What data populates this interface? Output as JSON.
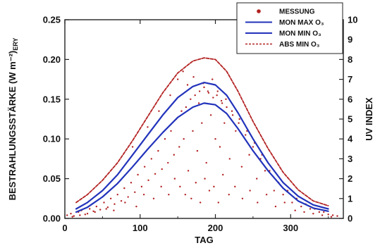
{
  "chart_data": {
    "type": "line",
    "xlabel": "TAG",
    "ylabel": "BESTRAHLUNGSSTÄRKE (W m⁻²)",
    "ylabel_sub": "ERY",
    "y2label": "UV INDEX",
    "xlim": [
      0,
      370
    ],
    "ylim": [
      0,
      0.25
    ],
    "y2lim": [
      0,
      10
    ],
    "x_ticks": [
      "0",
      "100",
      "200",
      "300"
    ],
    "y_ticks": [
      "0.00",
      "0.05",
      "0.10",
      "0.15",
      "0.20",
      "0.25"
    ],
    "y2_ticks": [
      "0",
      "1",
      "2",
      "3",
      "4",
      "5",
      "6",
      "7",
      "8",
      "9",
      "10"
    ],
    "legend": {
      "position": "top-right",
      "entries": [
        {
          "label": "MESSUNG",
          "style": "dots",
          "color": "#b32222"
        },
        {
          "label": "MON MAX O₃",
          "style": "solid",
          "color": "#2233bb"
        },
        {
          "label": "MON MIN O₃",
          "style": "solid",
          "color": "#2233bb"
        },
        {
          "label": "ABS MIN O₃",
          "style": "dashed",
          "color": "#b32222"
        }
      ]
    },
    "series": [
      {
        "name": "MON MAX O₃",
        "color": "#2233bb",
        "style": "solid",
        "x": [
          15,
          30,
          50,
          70,
          90,
          110,
          130,
          150,
          170,
          185,
          200,
          215,
          230,
          250,
          270,
          290,
          310,
          330,
          350
        ],
        "y": [
          0.012,
          0.02,
          0.035,
          0.055,
          0.08,
          0.105,
          0.13,
          0.152,
          0.166,
          0.171,
          0.168,
          0.155,
          0.133,
          0.1,
          0.07,
          0.045,
          0.028,
          0.017,
          0.012
        ]
      },
      {
        "name": "MON MIN O₃",
        "color": "#2233bb",
        "style": "solid",
        "x": [
          15,
          30,
          50,
          70,
          90,
          110,
          130,
          150,
          170,
          185,
          200,
          215,
          230,
          250,
          270,
          290,
          310,
          330,
          350
        ],
        "y": [
          0.008,
          0.014,
          0.027,
          0.044,
          0.065,
          0.087,
          0.108,
          0.127,
          0.14,
          0.145,
          0.143,
          0.132,
          0.113,
          0.085,
          0.06,
          0.038,
          0.022,
          0.013,
          0.009
        ]
      },
      {
        "name": "ABS MIN O₃",
        "color": "#b32222",
        "style": "dashed",
        "x": [
          15,
          30,
          50,
          70,
          90,
          110,
          130,
          150,
          170,
          185,
          200,
          215,
          230,
          250,
          270,
          290,
          310,
          330,
          350
        ],
        "y": [
          0.02,
          0.03,
          0.048,
          0.07,
          0.098,
          0.128,
          0.158,
          0.183,
          0.198,
          0.202,
          0.2,
          0.185,
          0.16,
          0.122,
          0.088,
          0.058,
          0.036,
          0.022,
          0.016
        ]
      }
    ],
    "scatter": {
      "name": "MESSUNG",
      "color": "#b32222",
      "x": [
        3,
        8,
        12,
        18,
        22,
        27,
        33,
        38,
        42,
        47,
        52,
        57,
        61,
        66,
        70,
        75,
        79,
        84,
        88,
        93,
        97,
        102,
        106,
        111,
        115,
        120,
        124,
        129,
        133,
        137,
        141,
        145,
        148,
        152,
        155,
        158,
        161,
        164,
        167,
        170,
        173,
        176,
        179,
        182,
        185,
        188,
        191,
        194,
        197,
        200,
        203,
        206,
        209,
        212,
        215,
        219,
        223,
        227,
        231,
        235,
        240,
        245,
        250,
        255,
        260,
        266,
        272,
        278,
        284,
        290,
        296,
        302,
        308,
        314,
        320,
        326,
        332,
        338,
        344,
        350,
        356,
        362,
        10,
        20,
        30,
        40,
        55,
        65,
        80,
        95,
        105,
        118,
        128,
        138,
        146,
        153,
        160,
        168,
        174,
        180,
        186,
        192,
        198,
        204,
        210,
        218,
        226,
        236,
        246,
        256,
        268,
        280,
        292,
        306,
        318,
        330,
        342,
        354,
        90,
        110,
        125,
        140,
        150,
        157,
        163,
        171,
        178,
        184,
        190,
        196,
        202,
        208,
        214,
        222,
        232,
        242,
        252,
        262
      ],
      "y": [
        0.004,
        0.006,
        0.003,
        0.008,
        0.01,
        0.005,
        0.012,
        0.009,
        0.015,
        0.011,
        0.02,
        0.014,
        0.025,
        0.018,
        0.03,
        0.022,
        0.038,
        0.027,
        0.045,
        0.033,
        0.055,
        0.04,
        0.065,
        0.048,
        0.075,
        0.056,
        0.085,
        0.062,
        0.1,
        0.07,
        0.11,
        0.08,
        0.125,
        0.09,
        0.135,
        0.1,
        0.14,
        0.06,
        0.15,
        0.11,
        0.155,
        0.085,
        0.16,
        0.12,
        0.165,
        0.07,
        0.158,
        0.13,
        0.152,
        0.1,
        0.16,
        0.09,
        0.145,
        0.12,
        0.14,
        0.075,
        0.13,
        0.11,
        0.12,
        0.065,
        0.105,
        0.08,
        0.09,
        0.05,
        0.075,
        0.06,
        0.06,
        0.035,
        0.045,
        0.03,
        0.035,
        0.02,
        0.025,
        0.015,
        0.018,
        0.012,
        0.012,
        0.008,
        0.008,
        0.005,
        0.004,
        0.003,
        0.002,
        0.004,
        0.006,
        0.008,
        0.012,
        0.01,
        0.02,
        0.015,
        0.03,
        0.025,
        0.04,
        0.03,
        0.05,
        0.04,
        0.03,
        0.025,
        0.045,
        0.02,
        0.05,
        0.035,
        0.04,
        0.02,
        0.055,
        0.03,
        0.04,
        0.025,
        0.035,
        0.02,
        0.03,
        0.015,
        0.02,
        0.01,
        0.008,
        0.006,
        0.004,
        0.002,
        0.09,
        0.115,
        0.135,
        0.155,
        0.175,
        0.185,
        0.168,
        0.178,
        0.145,
        0.17,
        0.16,
        0.175,
        0.155,
        0.148,
        0.15,
        0.135,
        0.125,
        0.11,
        0.095,
        0.08
      ]
    }
  }
}
